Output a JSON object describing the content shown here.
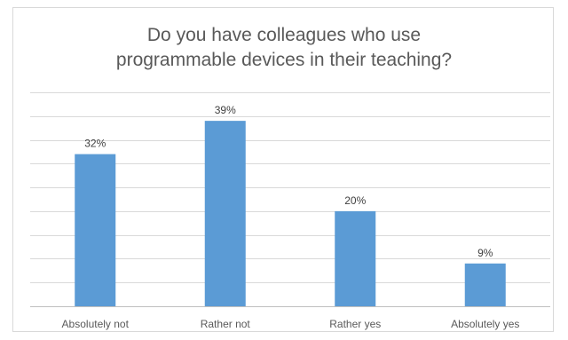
{
  "chart_data": {
    "type": "bar",
    "title": "Do you have colleagues who use programmable devices in their teaching?",
    "categories": [
      "Absolutely not",
      "Rather not",
      "Rather yes",
      "Absolutely yes"
    ],
    "values": [
      32,
      39,
      20,
      9
    ],
    "data_labels": [
      "32%",
      "39%",
      "20%",
      "9%"
    ],
    "unit": "%",
    "xlabel": "",
    "ylabel": "",
    "ylim": [
      0,
      45
    ],
    "grid": true,
    "legend": "none",
    "colors": {
      "bar": "#5b9bd5",
      "grid": "#d9d9d9",
      "axis": "#bfbfbf"
    }
  }
}
